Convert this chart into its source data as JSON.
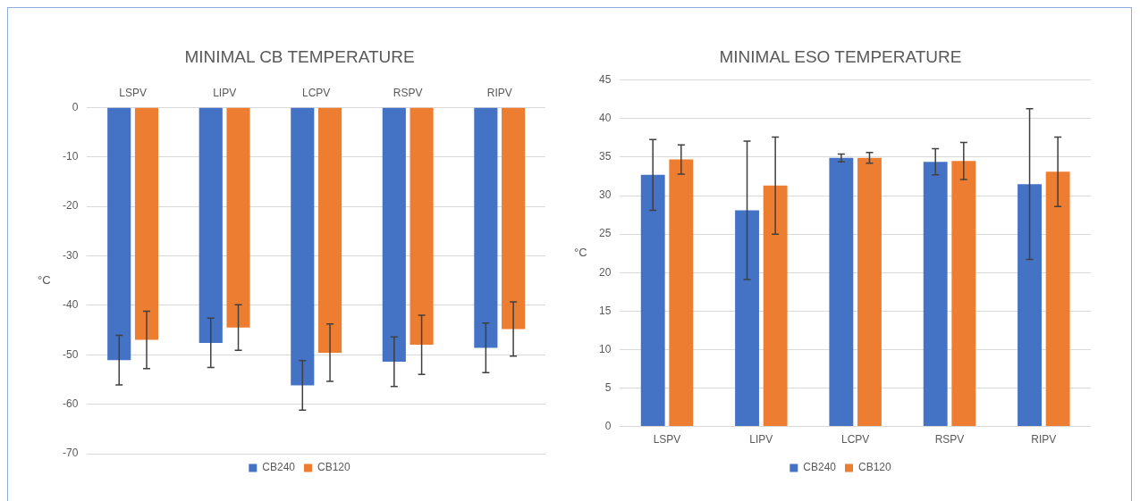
{
  "chart_data": [
    {
      "type": "bar",
      "title": "MINIMAL CB TEMPERATURE",
      "ylabel": "°C",
      "categories": [
        "LSPV",
        "LIPV",
        "LCPV",
        "RSPV",
        "RIPV"
      ],
      "series": [
        {
          "name": "CB240",
          "color": "#4472c4",
          "values": [
            -51.1,
            -47.6,
            -56.2,
            -51.4,
            -48.6
          ],
          "errors": [
            5,
            5,
            5,
            5,
            5
          ]
        },
        {
          "name": "CB120",
          "color": "#ed7d31",
          "values": [
            -47,
            -44.5,
            -49.6,
            -48,
            -44.8
          ],
          "errors": [
            5.8,
            4.6,
            5.8,
            6,
            5.5
          ]
        }
      ],
      "ylim": [
        -70,
        0
      ],
      "yticks": [
        -70,
        -60,
        -50,
        -40,
        -30,
        -20,
        -10,
        0
      ],
      "grid": "y",
      "legend": "bottom"
    },
    {
      "type": "bar",
      "title": "MINIMAL ESO TEMPERATURE",
      "ylabel": "°C",
      "categories": [
        "LSPV",
        "LIPV",
        "LCPV",
        "RSPV",
        "RIPV"
      ],
      "series": [
        {
          "name": "CB240",
          "color": "#4472c4",
          "values": [
            32.7,
            28.1,
            34.9,
            34.4,
            31.5
          ],
          "errors": [
            4.6,
            9,
            0.5,
            1.7,
            9.8
          ]
        },
        {
          "name": "CB120",
          "color": "#ed7d31",
          "values": [
            34.7,
            31.3,
            34.9,
            34.5,
            33.1
          ],
          "errors": [
            1.9,
            6.3,
            0.7,
            2.4,
            4.5
          ]
        }
      ],
      "ylim": [
        0,
        45
      ],
      "yticks": [
        0,
        5,
        10,
        15,
        20,
        25,
        30,
        35,
        40,
        45
      ],
      "grid": "y",
      "legend": "bottom"
    }
  ]
}
